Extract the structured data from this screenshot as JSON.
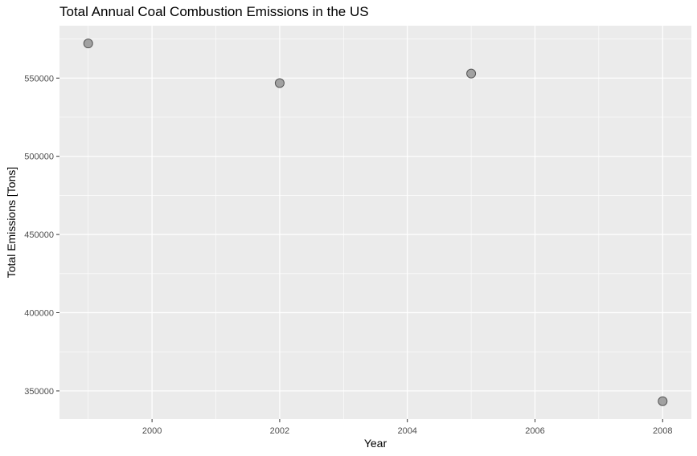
{
  "chart_data": {
    "type": "scatter",
    "title": "Total Annual Coal Combustion Emissions in the US",
    "xlabel": "Year",
    "ylabel": "Total Emissions [Tons]",
    "x": [
      1999,
      2002,
      2005,
      2008
    ],
    "y": [
      572126,
      546789,
      552881,
      343432
    ],
    "xlim": [
      1998.55,
      2008.45
    ],
    "ylim": [
      332000,
      583500
    ],
    "x_ticks": [
      2000,
      2002,
      2004,
      2006,
      2008
    ],
    "x_tick_labels": [
      "2000",
      "2002",
      "2004",
      "2006",
      "2008"
    ],
    "y_ticks": [
      350000,
      400000,
      450000,
      500000,
      550000
    ],
    "y_tick_labels": [
      "350000",
      "400000",
      "450000",
      "500000",
      "550000"
    ],
    "grid": true,
    "legend": "none",
    "colors": {
      "panel": "#ebebeb",
      "grid": "#ffffff",
      "point_fill": "#999999",
      "point_stroke": "#555555"
    }
  }
}
